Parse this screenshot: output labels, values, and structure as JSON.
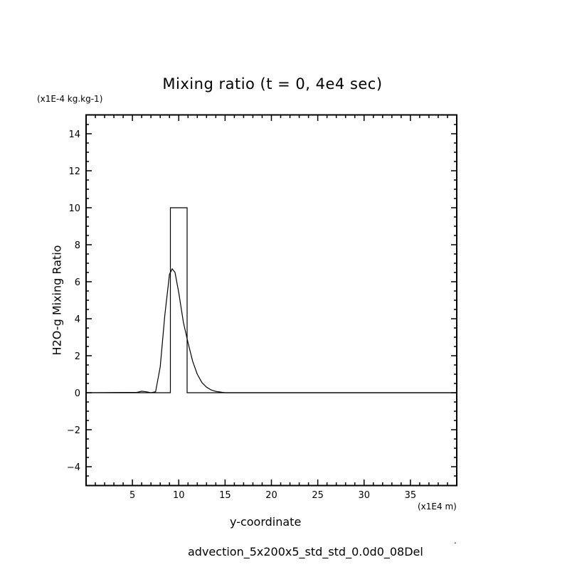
{
  "chart_data": {
    "type": "line",
    "title": "Mixing ratio (t = 0, 4e4 sec)",
    "xlabel": "y-coordinate",
    "xunit": "(x1E4 m)",
    "ylabel": "H2O-g Mixing Ratio",
    "yunit": "(x1E-4 kg.kg-1)",
    "xlim": [
      0,
      40
    ],
    "ylim": [
      -5,
      15
    ],
    "xticks": [
      5,
      10,
      15,
      20,
      25,
      30,
      35
    ],
    "yticks": [
      14,
      12,
      10,
      8,
      6,
      4,
      2,
      0,
      -2,
      -4
    ],
    "grid": false,
    "legend": "none",
    "series": [
      {
        "name": "t = 0",
        "x": [
          0,
          9.1,
          9.1,
          10.9,
          10.9,
          40
        ],
        "y": [
          0,
          0,
          10,
          10,
          0,
          0
        ]
      },
      {
        "name": "t = 4e4 sec",
        "x": [
          0,
          5.5,
          6.0,
          6.5,
          7.0,
          7.5,
          8.0,
          8.5,
          9.0,
          9.3,
          9.6,
          10.0,
          10.5,
          11.0,
          11.5,
          12.0,
          12.5,
          13.0,
          13.5,
          14.0,
          15.0,
          40
        ],
        "y": [
          0,
          0.02,
          0.08,
          0.05,
          0.0,
          0.05,
          1.4,
          4.2,
          6.4,
          6.7,
          6.5,
          5.4,
          3.8,
          2.7,
          1.7,
          1.0,
          0.55,
          0.3,
          0.15,
          0.07,
          0.0,
          0
        ]
      }
    ]
  },
  "footer": "advection_5x200x5_std_std_0.0d0_08Del",
  "footer_mark": "."
}
